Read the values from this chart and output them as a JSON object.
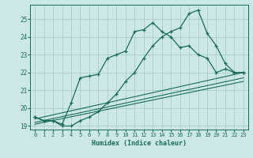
{
  "xlabel": "Humidex (Indice chaleur)",
  "bg_color": "#cce8e4",
  "grid_color": "#aaccca",
  "line_color": "#1a6b5a",
  "xlim": [
    -0.5,
    23.5
  ],
  "ylim": [
    18.8,
    25.8
  ],
  "xticks": [
    0,
    1,
    2,
    3,
    4,
    5,
    6,
    7,
    8,
    9,
    10,
    11,
    12,
    13,
    14,
    15,
    16,
    17,
    18,
    19,
    20,
    21,
    22,
    23
  ],
  "yticks": [
    19,
    20,
    21,
    22,
    23,
    24,
    25
  ],
  "series1_x": [
    0,
    1,
    2,
    3,
    4,
    5,
    6,
    7,
    8,
    9,
    10,
    11,
    12,
    13,
    14,
    15,
    16,
    17,
    18,
    19,
    20,
    21,
    22,
    23
  ],
  "series1_y": [
    19.5,
    19.3,
    19.3,
    19.1,
    20.3,
    21.7,
    21.8,
    21.9,
    22.8,
    23.0,
    23.2,
    24.3,
    24.4,
    24.8,
    24.3,
    24.0,
    23.4,
    23.5,
    23.0,
    22.8,
    22.0,
    22.2,
    22.0,
    22.0
  ],
  "series2_x": [
    0,
    1,
    2,
    3,
    4,
    5,
    6,
    7,
    8,
    9,
    10,
    11,
    12,
    13,
    14,
    15,
    16,
    17,
    18,
    19,
    20,
    21,
    22,
    23
  ],
  "series2_y": [
    19.5,
    19.3,
    19.3,
    19.0,
    19.0,
    19.3,
    19.5,
    19.8,
    20.3,
    20.8,
    21.5,
    22.0,
    22.8,
    23.5,
    24.0,
    24.3,
    24.5,
    25.3,
    25.5,
    24.2,
    23.5,
    22.5,
    22.0,
    22.0
  ],
  "line1_x": [
    0,
    23
  ],
  "line1_y": [
    19.4,
    22.0
  ],
  "line2_x": [
    0,
    23
  ],
  "line2_y": [
    19.2,
    21.7
  ],
  "line3_x": [
    0,
    23
  ],
  "line3_y": [
    19.1,
    21.5
  ]
}
